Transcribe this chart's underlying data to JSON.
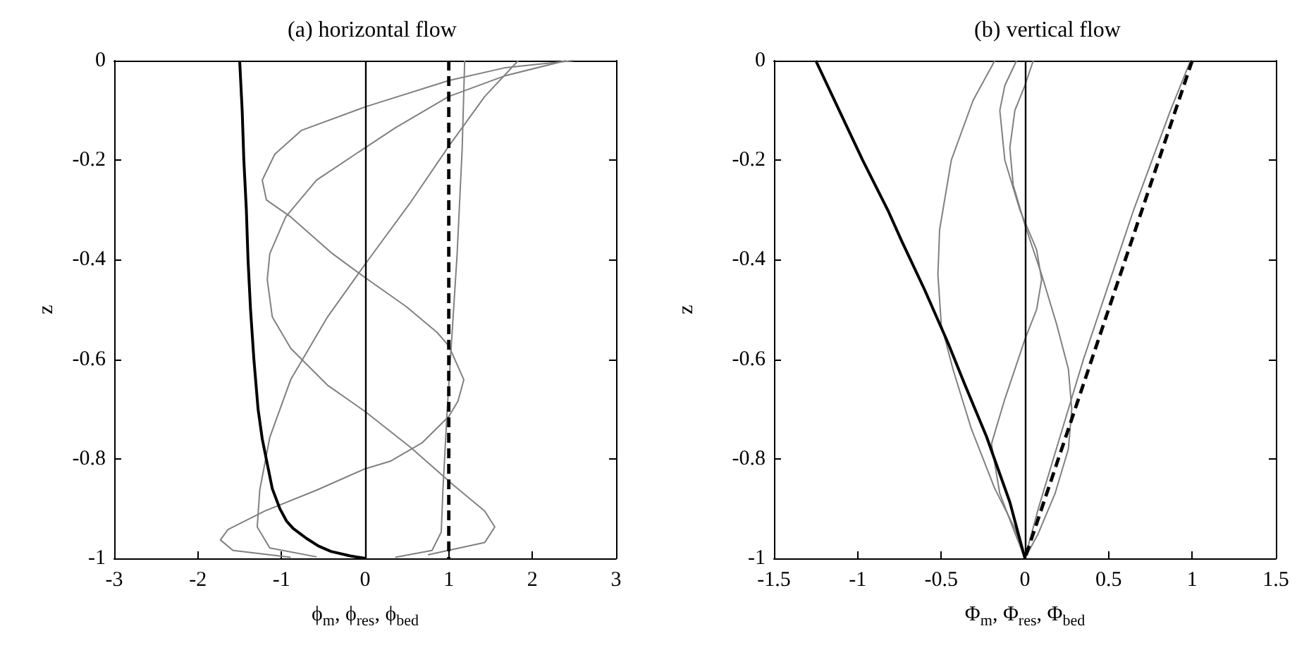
{
  "chart_data": [
    {
      "type": "line",
      "title": "(a) horizontal flow",
      "xlabel": "ϕ$_{m}$, ϕ$_{res}$, ϕ$_{bed}$",
      "ylabel": "z",
      "xlim": [
        -3,
        3
      ],
      "xticks": [
        -3,
        -2,
        -1,
        0,
        1,
        2,
        3
      ],
      "ylim": [
        -1,
        0
      ],
      "yticks": [
        -1,
        -0.8,
        -0.6,
        -0.4,
        -0.2,
        0
      ],
      "series": [
        {
          "color": "#808080",
          "x": [
            1.19,
            1.16,
            1.1,
            1.04,
            0.98,
            0.93,
            0.91,
            0.8,
            0.36
          ],
          "values": [
            0,
            -0.177,
            -0.388,
            -0.546,
            -0.705,
            -0.863,
            -0.947,
            -0.984,
            -0.998
          ]
        },
        {
          "color": "#808080",
          "x": [
            1.83,
            1.43,
            1.0,
            0.55,
            0,
            -0.45,
            -0.89,
            -1.14,
            -1.26,
            -1.29,
            -1.14,
            -0.58
          ],
          "values": [
            0,
            -0.072,
            -0.172,
            -0.283,
            -0.409,
            -0.515,
            -0.641,
            -0.757,
            -0.863,
            -0.937,
            -0.979,
            -0.997
          ]
        },
        {
          "color": "#808080",
          "x": [
            2.4,
            1.68,
            1.0,
            0.36,
            0,
            -0.58,
            -0.95,
            -1.14,
            -1.17,
            -1.11,
            -0.89,
            -0.45,
            0,
            0.55,
            1.05,
            1.43,
            1.55,
            1.43,
            0.75
          ],
          "values": [
            0,
            -0.03,
            -0.072,
            -0.135,
            -0.175,
            -0.24,
            -0.314,
            -0.388,
            -0.44,
            -0.515,
            -0.578,
            -0.652,
            -0.705,
            -0.778,
            -0.852,
            -0.905,
            -0.937,
            -0.968,
            -0.993
          ]
        },
        {
          "color": "#808080",
          "x": [
            2.49,
            1.68,
            1.0,
            0,
            -0.76,
            -1.08,
            -1.23,
            -1.18,
            -0.89,
            -0.39,
            0,
            0.49,
            0.86,
            1.0,
            1.18,
            1.11,
            1.0,
            0.68,
            0.3,
            0,
            -0.58,
            -1.2,
            -1.64,
            -1.73,
            -1.58,
            -0.89
          ],
          "values": [
            0,
            -0.014,
            -0.04,
            -0.093,
            -0.14,
            -0.188,
            -0.24,
            -0.28,
            -0.314,
            -0.388,
            -0.436,
            -0.494,
            -0.546,
            -0.573,
            -0.641,
            -0.684,
            -0.715,
            -0.768,
            -0.805,
            -0.82,
            -0.863,
            -0.905,
            -0.942,
            -0.963,
            -0.984,
            -0.998
          ]
        },
        {
          "color": "#000000",
          "x": [
            -1.5,
            -1.47,
            -1.45,
            -1.42,
            -1.4,
            -1.37,
            -1.33,
            -1.28,
            -1.23,
            -1.17,
            -1.11,
            -1.02,
            -0.94,
            -0.86,
            -0.7,
            -0.56,
            -0.41,
            -0.18,
            0
          ],
          "values": [
            0,
            -0.1,
            -0.2,
            -0.3,
            -0.4,
            -0.5,
            -0.6,
            -0.7,
            -0.76,
            -0.81,
            -0.86,
            -0.9,
            -0.925,
            -0.94,
            -0.96,
            -0.975,
            -0.986,
            -0.995,
            -1
          ]
        },
        {
          "color": "#000000",
          "line_style": "dashed",
          "x": [
            1,
            1
          ],
          "values": [
            0,
            -1
          ]
        }
      ],
      "ref_lines": [
        {
          "axis": "x",
          "value": 0,
          "color": "#000000"
        }
      ]
    },
    {
      "type": "line",
      "title": "(b) vertical flow",
      "xlabel": "Φ$_{m}$, Φ$_{res}$, Φ$_{bed}$",
      "ylabel": "z",
      "xlim": [
        -1.5,
        1.5
      ],
      "xticks": [
        -1.5,
        -1,
        -0.5,
        0,
        0.5,
        1,
        1.5
      ],
      "ylim": [
        -1,
        0
      ],
      "yticks": [
        -1,
        -0.8,
        -0.6,
        -0.4,
        -0.2,
        0
      ],
      "series": [
        {
          "color": "#808080",
          "x": [
            0.99,
            0.87,
            0.76,
            0.65,
            0.55,
            0.45,
            0.35,
            0.26,
            0.17,
            0.08,
            0.04,
            0
          ],
          "values": [
            0,
            -0.1,
            -0.2,
            -0.3,
            -0.4,
            -0.5,
            -0.6,
            -0.7,
            -0.8,
            -0.9,
            -0.95,
            -1
          ]
        },
        {
          "color": "#808080",
          "x": [
            -0.18,
            -0.31,
            -0.44,
            -0.51,
            -0.52,
            -0.5,
            -0.43,
            -0.32,
            -0.18,
            -0.06,
            0
          ],
          "values": [
            0,
            -0.08,
            -0.2,
            -0.34,
            -0.43,
            -0.53,
            -0.62,
            -0.74,
            -0.86,
            -0.94,
            -1
          ]
        },
        {
          "color": "#808080",
          "x": [
            0.05,
            0,
            -0.06,
            -0.09,
            -0.07,
            0,
            0.1,
            0.19,
            0.26,
            0.28,
            0.26,
            0.18,
            0.08,
            0
          ],
          "values": [
            0,
            -0.05,
            -0.1,
            -0.175,
            -0.25,
            -0.33,
            -0.43,
            -0.53,
            -0.62,
            -0.7,
            -0.78,
            -0.87,
            -0.95,
            -1
          ]
        },
        {
          "color": "#808080",
          "x": [
            -0.05,
            -0.12,
            -0.15,
            -0.12,
            -0.03,
            0.07,
            0.1,
            0.07,
            0,
            -0.12,
            -0.2,
            -0.15,
            -0.07,
            0
          ],
          "values": [
            0,
            -0.05,
            -0.1,
            -0.2,
            -0.3,
            -0.38,
            -0.44,
            -0.5,
            -0.56,
            -0.68,
            -0.77,
            -0.87,
            -0.94,
            -1
          ]
        },
        {
          "color": "#000000",
          "x": [
            -1.25,
            -1.11,
            -0.97,
            -0.82,
            -0.74,
            -0.6,
            -0.46,
            -0.36,
            -0.23,
            -0.09,
            -0.04,
            0
          ],
          "values": [
            0,
            -0.1,
            -0.2,
            -0.3,
            -0.36,
            -0.46,
            -0.567,
            -0.65,
            -0.755,
            -0.887,
            -0.95,
            -1
          ]
        },
        {
          "color": "#000000",
          "line_style": "dashed",
          "x": [
            1,
            0
          ],
          "values": [
            0,
            -1
          ]
        }
      ],
      "ref_lines": [
        {
          "axis": "x",
          "value": 0,
          "color": "#000000"
        }
      ]
    }
  ]
}
